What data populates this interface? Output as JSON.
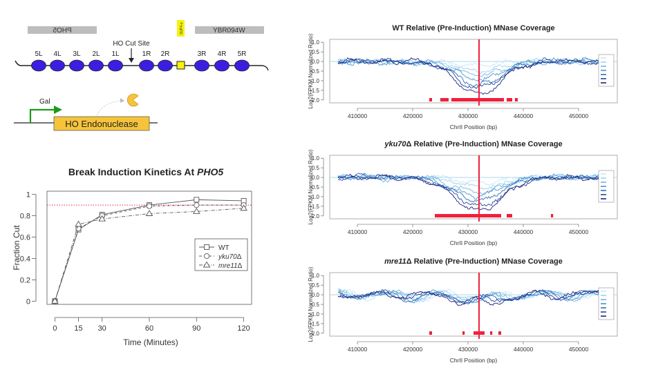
{
  "schematic": {
    "genes": [
      {
        "name": "PHO5",
        "mirrored": true
      },
      {
        "name": "YBR094W",
        "mirrored": false
      }
    ],
    "small_feature": "SUP4-o",
    "cut_site_label": "HO Cut Site",
    "nucleosomes": [
      "5L",
      "4L",
      "3L",
      "2L",
      "1L",
      "1R",
      "2R",
      "3R",
      "4R",
      "5R"
    ],
    "promoter_label": "Gal",
    "enzyme_label": "HO Endonuclease",
    "colors": {
      "gene_bar": "#bdbdbd",
      "nucleosome": "#3b1fe0",
      "enzyme_box": "#f5c43a",
      "promoter": "#1a9a1a",
      "pacman": "#f5c43a"
    }
  },
  "chart_data": [
    {
      "type": "line",
      "title": "Break Induction Kinetics At ",
      "title_italic": "PHO5",
      "xlabel": "Time (Minutes)",
      "ylabel": "Fraction Cut",
      "x": [
        0,
        15,
        30,
        60,
        90,
        120
      ],
      "xticks": [
        "0",
        "15",
        "30",
        "60",
        "90",
        "120"
      ],
      "yticks": [
        "0",
        "0.2",
        "0.4",
        "0.6",
        "0.8",
        "1"
      ],
      "xlim": [
        -5,
        125
      ],
      "ylim": [
        -0.03,
        1.03
      ],
      "reference_line": 0.9,
      "legend_position": "center-right",
      "series": [
        {
          "name": "WT",
          "italic": false,
          "values": [
            0,
            0.67,
            0.81,
            0.9,
            0.95,
            0.94
          ],
          "marker": "square",
          "dash": "solid"
        },
        {
          "name": "yku70",
          "italic": true,
          "values": [
            0,
            0.68,
            0.8,
            0.89,
            0.9,
            0.9
          ],
          "marker": "circle",
          "dash": "dashed"
        },
        {
          "name": "mre11",
          "italic": true,
          "values": [
            0,
            0.72,
            0.77,
            0.82,
            0.84,
            0.87
          ],
          "marker": "triangle",
          "dash": "dotdash"
        }
      ],
      "delta_symbol": "Δ"
    },
    {
      "type": "line",
      "title_italic": "",
      "title": "WT Relative (Pre-Induction) MNase Coverage",
      "xlabel": "ChrII Position (bp)",
      "ylabel": "Log2(FPKM Normalized Ratio)",
      "xticks": [
        "410000",
        "420000",
        "430000",
        "440000",
        "450000"
      ],
      "yticks": [
        "1.0",
        "0.5",
        "0.0",
        "-0.5",
        "-1.0",
        "-1.5",
        "-2.0"
      ],
      "xlim": [
        405000,
        457000
      ],
      "ylim": [
        -2.15,
        1.15
      ],
      "cut_position": 432000,
      "dip_depth": 1.6,
      "red_segments": [
        [
          423000,
          423500
        ],
        [
          425000,
          426500
        ],
        [
          427000,
          436500
        ],
        [
          437000,
          438000
        ],
        [
          438500,
          439000
        ]
      ]
    },
    {
      "type": "line",
      "title_italic": "yku70",
      "title": " Relative (Pre-Induction) MNase Coverage",
      "xlabel": "ChrII Position (bp)",
      "ylabel": "Log2(FPKM Normalized Ratio)",
      "xticks": [
        "410000",
        "420000",
        "430000",
        "440000",
        "450000"
      ],
      "yticks": [
        "1.0",
        "0.5",
        "0.0",
        "-0.5",
        "-1.0",
        "-1.5",
        "-2.0"
      ],
      "xlim": [
        405000,
        457000
      ],
      "ylim": [
        -2.15,
        1.15
      ],
      "cut_position": 432000,
      "dip_depth": 1.7,
      "red_segments": [
        [
          424000,
          436000
        ],
        [
          437000,
          438000
        ],
        [
          445000,
          445400
        ]
      ]
    },
    {
      "type": "line",
      "title_italic": "mre11",
      "title": " Relative (Pre-Induction) MNase Coverage",
      "xlabel": "ChrII Position (bp)",
      "ylabel": "Log2(FPKM Normalized Ratio)",
      "xticks": [
        "410000",
        "420000",
        "430000",
        "440000",
        "450000"
      ],
      "yticks": [
        "1.0",
        "0.5",
        "0.0",
        "-0.5",
        "-1.0",
        "-1.5",
        "-2.0"
      ],
      "xlim": [
        405000,
        457000
      ],
      "ylim": [
        -2.15,
        1.15
      ],
      "cut_position": 432000,
      "dip_depth": 0.4,
      "red_segments": [
        [
          423000,
          423500
        ],
        [
          429000,
          429400
        ],
        [
          431000,
          433000
        ],
        [
          434000,
          434400
        ],
        [
          435500,
          436000
        ]
      ]
    }
  ],
  "coverage_series_colors": [
    "#c7e6f5",
    "#9fd0ee",
    "#6fb5e0",
    "#4a93cf",
    "#2f6fb8",
    "#27439a",
    "#1a237e"
  ],
  "accent_red": "#f0203c"
}
